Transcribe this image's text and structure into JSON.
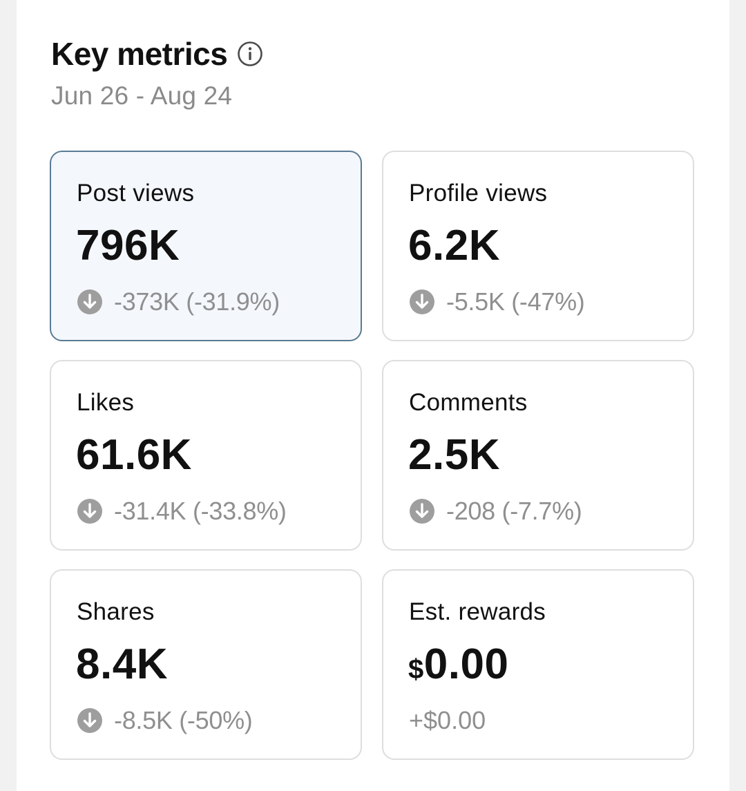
{
  "header": {
    "title": "Key metrics",
    "date_range": "Jun 26 - Aug 24"
  },
  "metrics": [
    {
      "label": "Post views",
      "value": "796K",
      "change": "-373K (-31.9%)",
      "trend": "down",
      "selected": true
    },
    {
      "label": "Profile views",
      "value": "6.2K",
      "change": "-5.5K (-47%)",
      "trend": "down",
      "selected": false
    },
    {
      "label": "Likes",
      "value": "61.6K",
      "change": "-31.4K (-33.8%)",
      "trend": "down",
      "selected": false
    },
    {
      "label": "Comments",
      "value": "2.5K",
      "change": "-208 (-7.7%)",
      "trend": "down",
      "selected": false
    },
    {
      "label": "Shares",
      "value": "8.4K",
      "change": "-8.5K (-50%)",
      "trend": "down",
      "selected": false
    },
    {
      "label": "Est. rewards",
      "currency": "$",
      "value": "0.00",
      "change": "+$0.00",
      "trend": "none",
      "selected": false
    }
  ],
  "colors": {
    "selected_bg": "#f4f7fc",
    "selected_border": "#5a7b93",
    "muted_text": "#8f8f8f",
    "icon_fill": "#9e9e9e"
  },
  "icons": {
    "info": "info-icon",
    "trend_down": "arrow-down-circle-icon"
  }
}
